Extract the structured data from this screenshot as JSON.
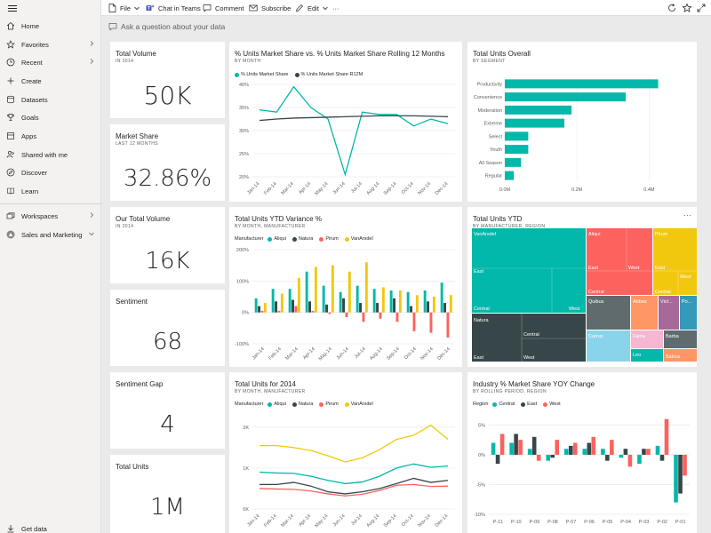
{
  "sidebar": {
    "items": [
      {
        "label": "Home",
        "icon": "home-icon"
      },
      {
        "label": "Favorites",
        "icon": "star-icon",
        "chevron": true
      },
      {
        "label": "Recent",
        "icon": "clock-icon",
        "chevron": true
      },
      {
        "label": "Create",
        "icon": "plus-icon"
      },
      {
        "label": "Datasets",
        "icon": "database-icon"
      },
      {
        "label": "Goals",
        "icon": "trophy-icon"
      },
      {
        "label": "Apps",
        "icon": "apps-icon"
      },
      {
        "label": "Shared with me",
        "icon": "share-icon"
      },
      {
        "label": "Discover",
        "icon": "compass-icon"
      },
      {
        "label": "Learn",
        "icon": "book-icon"
      }
    ],
    "workspaces_label": "Workspaces",
    "workspace_label": "Sales and Marketing",
    "get_data_label": "Get data"
  },
  "toolbar": {
    "file": "File",
    "chat_in_teams": "Chat in Teams",
    "comment": "Comment",
    "subscribe": "Subscribe",
    "edit": "Edit",
    "more": "···"
  },
  "qna": {
    "placeholder": "Ask a question about your data"
  },
  "colors": {
    "teal": "#01b8aa",
    "dark": "#374649",
    "red": "#fd625e",
    "yellow": "#f2c80f",
    "grey": "#5f6b6d",
    "blue": "#8ad4eb",
    "orange": "#fe9666",
    "purple": "#a66999",
    "navy": "#3599b8",
    "lightgrey": "#dfbfbf"
  },
  "cards": {
    "total_volume": {
      "title": "Total Volume",
      "subtitle": "IN 2014",
      "value": "50K"
    },
    "market_share": {
      "title": "Market Share",
      "subtitle": "LAST 12 MONTHS",
      "value": "32.86%"
    },
    "our_total_volume": {
      "title": "Our Total Volume",
      "subtitle": "IN 2014",
      "value": "16K"
    },
    "sentiment": {
      "title": "Sentiment",
      "value": "68"
    },
    "sentiment_gap": {
      "title": "Sentiment Gap",
      "value": "4"
    },
    "total_units": {
      "title": "Total Units",
      "value": "1M"
    }
  },
  "chart_data": [
    {
      "id": "market_share_line",
      "type": "line",
      "title": "% Units Market Share vs. % Units Market Share Rolling 12 Months",
      "subtitle": "BY MONTH",
      "x": [
        "Jan-14",
        "Feb-14",
        "Mar-14",
        "Apr-14",
        "May-14",
        "Jun-14",
        "Jul-14",
        "Aug-14",
        "Sep-14",
        "Oct-14",
        "Nov-14",
        "Dec-14"
      ],
      "series": [
        {
          "name": "% Units Market Share",
          "color": "#01b8aa",
          "values": [
            34.5,
            34,
            39.5,
            35,
            32.5,
            20.5,
            34,
            33.5,
            33.5,
            31,
            32.5,
            31.5
          ]
        },
        {
          "name": "% Units Market Share R12M",
          "color": "#374649",
          "values": [
            32.2,
            32.5,
            32.7,
            32.8,
            32.9,
            33,
            33.1,
            33.2,
            33.2,
            33.2,
            33.1,
            33
          ]
        }
      ],
      "yticks": [
        "20%",
        "25%",
        "30%",
        "35%",
        "40%"
      ],
      "ylim": [
        20,
        40
      ]
    },
    {
      "id": "units_overall_bar",
      "type": "bar",
      "orientation": "horizontal",
      "title": "Total Units Overall",
      "subtitle": "BY SEGMENT",
      "categories": [
        "Productivity",
        "Convenience",
        "Moderation",
        "Extreme",
        "Select",
        "Youth",
        "All Season",
        "Regular"
      ],
      "values": [
        0.425,
        0.335,
        0.185,
        0.165,
        0.065,
        0.065,
        0.045,
        0.025
      ],
      "xticks": [
        "0.0M",
        "0.2M",
        "0.4M"
      ],
      "xlim": [
        0,
        0.5
      ],
      "color": "#01b8aa"
    },
    {
      "id": "ytd_variance_bar",
      "type": "bar",
      "title": "Total Units YTD Variance %",
      "subtitle": "BY MONTH, MANUFACTURER",
      "legend_title": "Manufacturer",
      "categories": [
        "Jan-14",
        "Feb-14",
        "Mar-14",
        "Apr-14",
        "May-14",
        "Jun-14",
        "Jul-14",
        "Aug-14",
        "Sep-14",
        "Oct-14",
        "Nov-14",
        "Dec-14"
      ],
      "series": [
        {
          "name": "Aliqui",
          "color": "#01b8aa",
          "values": [
            45,
            75,
            75,
            130,
            85,
            65,
            85,
            75,
            70,
            65,
            70,
            95
          ]
        },
        {
          "name": "Natura",
          "color": "#374649",
          "values": [
            20,
            35,
            40,
            35,
            25,
            45,
            30,
            30,
            45,
            20,
            35,
            30
          ]
        },
        {
          "name": "Pirum",
          "color": "#fd625e",
          "values": [
            5,
            5,
            20,
            5,
            -5,
            -15,
            -30,
            -20,
            -30,
            -60,
            -65,
            -80
          ]
        },
        {
          "name": "VanArsdel",
          "color": "#f2c80f",
          "values": [
            30,
            60,
            110,
            145,
            150,
            130,
            160,
            80,
            70,
            55,
            50,
            55
          ]
        }
      ],
      "yticks": [
        "-100%",
        "0%",
        "100%",
        "200%"
      ],
      "ylim": [
        -100,
        200
      ]
    },
    {
      "id": "ytd_treemap",
      "type": "treemap",
      "title": "Total Units YTD",
      "subtitle": "BY MANUFACTURER, REGION",
      "more_label": "···",
      "nodes": [
        {
          "manufacturer": "VanArsdel",
          "children": [
            "East",
            "Central",
            "West"
          ]
        },
        {
          "manufacturer": "Natura",
          "children": [
            "Central",
            "East",
            "West"
          ]
        },
        {
          "manufacturer": "Aliqui",
          "children": [
            "East",
            "West",
            "Central"
          ]
        },
        {
          "manufacturer": "Pirum",
          "children": [
            "East",
            "West",
            "Central"
          ]
        },
        {
          "manufacturer": "Quibus"
        },
        {
          "manufacturer": "Abbas"
        },
        {
          "manufacturer": "Vict..."
        },
        {
          "manufacturer": "Po..."
        },
        {
          "manufacturer": "Currus"
        },
        {
          "manufacturer": "Fama"
        },
        {
          "manufacturer": "Barba"
        },
        {
          "manufacturer": "Leo"
        },
        {
          "manufacturer": "Salvus"
        }
      ]
    },
    {
      "id": "units_2014_line",
      "type": "line",
      "title": "Total Units for 2014",
      "subtitle": "BY MONTH, MANUFACTURER",
      "legend_title": "Manufacturer",
      "x": [
        "Jan-14",
        "Feb-14",
        "Mar-14",
        "Apr-14",
        "May-14",
        "Jun-14",
        "Jul-14",
        "Aug-14",
        "Sep-14",
        "Oct-14",
        "Nov-14",
        "Dec-14"
      ],
      "series": [
        {
          "name": "Aliqui",
          "color": "#01b8aa",
          "values": [
            900,
            880,
            870,
            800,
            700,
            620,
            660,
            800,
            1000,
            1100,
            1020,
            1050
          ]
        },
        {
          "name": "Natura",
          "color": "#374649",
          "values": [
            600,
            600,
            650,
            560,
            420,
            370,
            420,
            500,
            620,
            750,
            650,
            700
          ]
        },
        {
          "name": "Pirum",
          "color": "#fd625e",
          "values": [
            500,
            490,
            480,
            440,
            370,
            320,
            360,
            450,
            580,
            600,
            550,
            560
          ]
        },
        {
          "name": "VanArsdel",
          "color": "#f2c80f",
          "values": [
            1550,
            1550,
            1500,
            1430,
            1300,
            1150,
            1250,
            1450,
            1700,
            1800,
            2050,
            1700
          ]
        }
      ],
      "yticks": [
        "0K",
        "1K",
        "2K"
      ],
      "ylim": [
        0,
        2300
      ]
    },
    {
      "id": "yoy_change_bar",
      "type": "bar",
      "title": "Industry % Market Share YOY Change",
      "subtitle": "BY ROLLING PERIOD, REGION",
      "legend_title": "Region",
      "categories": [
        "P-11",
        "P-10",
        "P-09",
        "P-08",
        "P-07",
        "P-06",
        "P-05",
        "P-04",
        "P-03",
        "P-02",
        "P-01"
      ],
      "series": [
        {
          "name": "Central",
          "color": "#01b8aa",
          "values": [
            2,
            2,
            1,
            -1,
            1,
            1,
            1,
            -0.5,
            -1.5,
            1.5,
            -8
          ]
        },
        {
          "name": "East",
          "color": "#374649",
          "values": [
            -1.5,
            3.5,
            3,
            -0.5,
            1.5,
            2,
            -1,
            1,
            1,
            -1,
            -6.5
          ]
        },
        {
          "name": "West",
          "color": "#fd625e",
          "values": [
            3.5,
            2.5,
            -1,
            2.5,
            2,
            3,
            2.5,
            -2,
            1,
            6,
            -3.5
          ]
        }
      ],
      "yticks": [
        "-10%",
        "-5%",
        "0%",
        "5%"
      ],
      "ylim": [
        -10,
        7
      ]
    }
  ]
}
